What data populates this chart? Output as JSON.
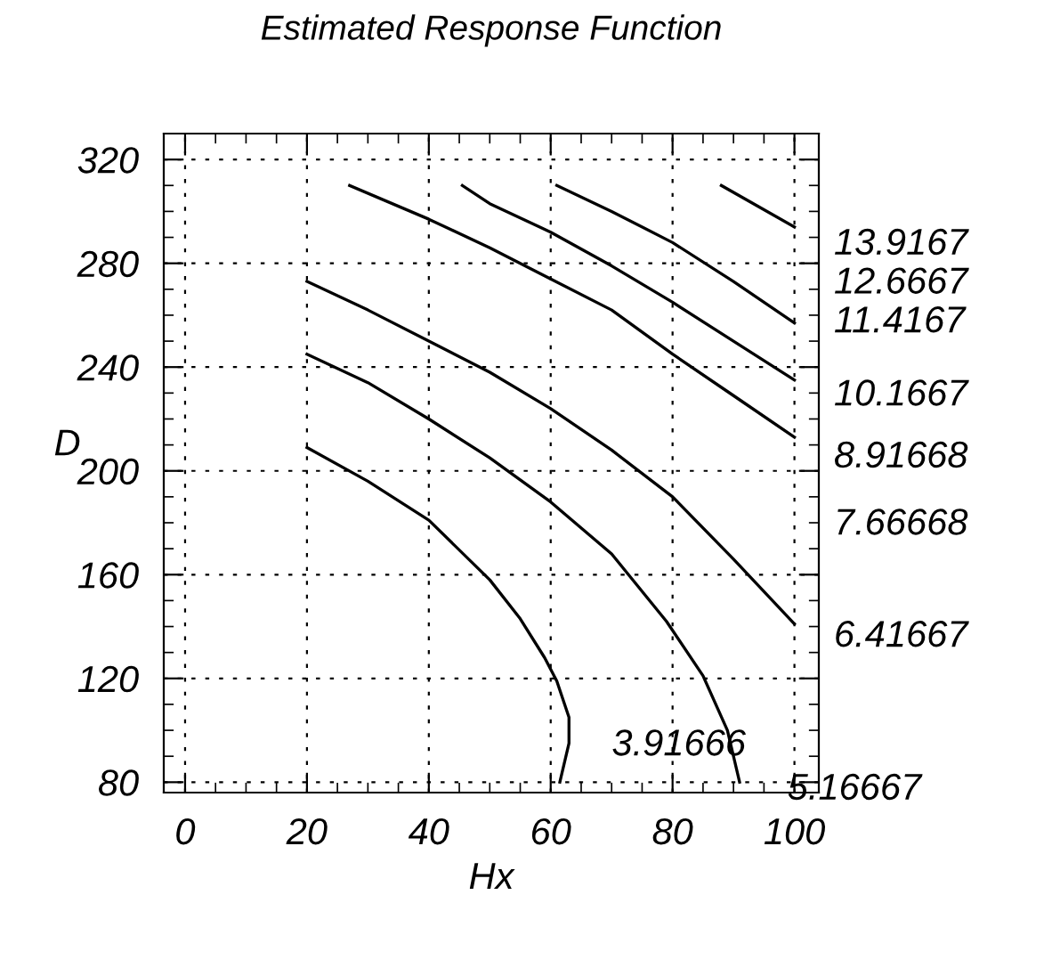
{
  "chart_data": {
    "type": "line",
    "title": "Estimated Response Function",
    "xlabel": "Hx",
    "ylabel": "D",
    "xlim": [
      -3.5,
      104
    ],
    "ylim": [
      76,
      330
    ],
    "xticks": [
      0,
      20,
      40,
      60,
      80,
      100
    ],
    "yticks": [
      80,
      120,
      160,
      200,
      240,
      280,
      320
    ],
    "grid": true,
    "marker": "none",
    "line_style": "solid",
    "series": [
      {
        "color": "#000000",
        "x": [
          20,
          30,
          40,
          50,
          55,
          59,
          61,
          63,
          63,
          61.5
        ],
        "values": [
          209,
          196,
          181,
          158,
          143,
          128,
          119,
          105,
          95,
          80
        ]
      },
      {
        "color": "#000000",
        "x": [
          20,
          30,
          40,
          50,
          60,
          70,
          79,
          85,
          89,
          91
        ],
        "values": [
          245,
          234,
          220,
          205,
          188,
          168,
          142,
          121,
          100,
          80
        ]
      },
      {
        "color": "#000000",
        "x": [
          20,
          30,
          40,
          50,
          60,
          70,
          80,
          90,
          100
        ],
        "values": [
          273,
          262,
          250,
          238,
          224,
          208,
          190,
          166,
          141
        ]
      },
      {
        "color": "#000000",
        "x": [
          27,
          40,
          50,
          60,
          70,
          80,
          90,
          100
        ],
        "values": [
          310,
          297,
          286,
          274,
          262,
          245,
          229,
          213
        ]
      },
      {
        "color": "#000000",
        "x": [
          45.5,
          50,
          60,
          70,
          80,
          90,
          100
        ],
        "values": [
          310,
          303,
          292,
          279,
          265,
          250,
          235
        ]
      },
      {
        "color": "#000000",
        "x": [
          61,
          70,
          80,
          90,
          100
        ],
        "values": [
          310,
          300,
          288,
          273,
          257
        ]
      },
      {
        "color": "#000000",
        "x": [
          88,
          100
        ],
        "values": [
          310,
          294
        ]
      }
    ],
    "annotations": [
      "13.9167",
      "12.6667",
      "11.4167",
      "10.1667",
      "8.91668",
      "7.66668",
      "6.41667",
      "3.91666",
      "5.16667"
    ]
  }
}
